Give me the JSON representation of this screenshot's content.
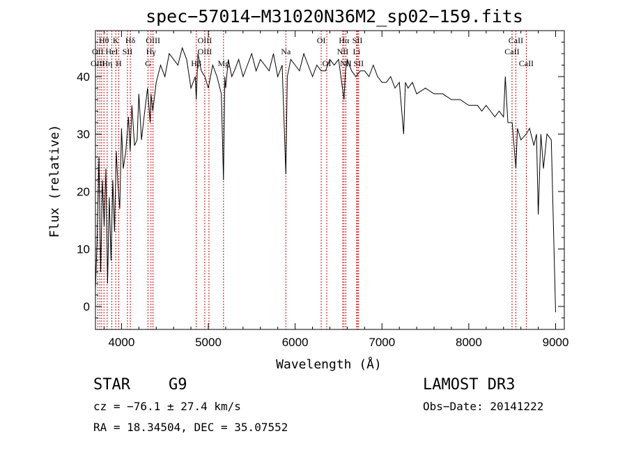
{
  "chart_data": {
    "type": "line",
    "title": "spec−57014−M31020N36M2_sp02−159.fits",
    "xlabel": "Wavelength (Å)",
    "ylabel": "Flux (relative)",
    "xlim": [
      3700,
      9100
    ],
    "ylim": [
      -4,
      48
    ],
    "xticks": [
      4000,
      5000,
      6000,
      7000,
      8000,
      9000
    ],
    "yticks": [
      0,
      10,
      20,
      30,
      40
    ],
    "grid": false,
    "series": [
      {
        "name": "flux",
        "x": [
          3700,
          3720,
          3740,
          3760,
          3780,
          3800,
          3820,
          3840,
          3860,
          3880,
          3900,
          3920,
          3940,
          3960,
          3980,
          4000,
          4020,
          4050,
          4080,
          4100,
          4120,
          4150,
          4180,
          4200,
          4230,
          4260,
          4300,
          4330,
          4340,
          4360,
          4400,
          4450,
          4500,
          4550,
          4600,
          4650,
          4700,
          4750,
          4800,
          4850,
          4861,
          4880,
          4920,
          4960,
          5000,
          5050,
          5100,
          5150,
          5175,
          5190,
          5200,
          5230,
          5270,
          5300,
          5350,
          5400,
          5450,
          5500,
          5550,
          5600,
          5650,
          5700,
          5750,
          5800,
          5850,
          5893,
          5910,
          5950,
          6000,
          6050,
          6100,
          6150,
          6200,
          6250,
          6300,
          6350,
          6400,
          6450,
          6500,
          6563,
          6580,
          6600,
          6650,
          6700,
          6750,
          6800,
          6850,
          6900,
          6950,
          7000,
          7050,
          7100,
          7150,
          7200,
          7250,
          7270,
          7300,
          7350,
          7400,
          7500,
          7600,
          7700,
          7800,
          7900,
          8000,
          8100,
          8150,
          8200,
          8250,
          8300,
          8350,
          8400,
          8420,
          8450,
          8500,
          8542,
          8560,
          8600,
          8662,
          8700,
          8750,
          8780,
          8800,
          8830,
          8860,
          8900,
          8950,
          9000
        ],
        "y": [
          3,
          12,
          26,
          6,
          22,
          14,
          24,
          4,
          19,
          8,
          22,
          13,
          27,
          21,
          17,
          31,
          24,
          27,
          33,
          27,
          35,
          28,
          29,
          37,
          29,
          33,
          38,
          32,
          37,
          34,
          39,
          42,
          40,
          44,
          43,
          42,
          45,
          43,
          38,
          40,
          36,
          44,
          41,
          40,
          38,
          42,
          40,
          37,
          22,
          40,
          38,
          43,
          40,
          41,
          43,
          40,
          42,
          44,
          41,
          43,
          42,
          41,
          44,
          40,
          42,
          23,
          40,
          43,
          42,
          41,
          44,
          42,
          40,
          42,
          41,
          41,
          43,
          42,
          43,
          36,
          41,
          43,
          41,
          40,
          41,
          41,
          40,
          42,
          40,
          39,
          39,
          40,
          38,
          39,
          30,
          39,
          38,
          39,
          37,
          38,
          37,
          37,
          36,
          36,
          35,
          35,
          34,
          35,
          34,
          33,
          34,
          33,
          40,
          32,
          32,
          24,
          31,
          29,
          30,
          31,
          28,
          30,
          16,
          30,
          24,
          30,
          29,
          -1
        ]
      }
    ],
    "annotations": [
      {
        "label": "Hθ",
        "x": 3798,
        "row": 0
      },
      {
        "label": "K",
        "x": 3934,
        "row": 0
      },
      {
        "label": "Hδ",
        "x": 4102,
        "row": 0
      },
      {
        "label": "OIII",
        "x": 4363,
        "row": 0
      },
      {
        "label": "OIII",
        "x": 4959,
        "row": 0
      },
      {
        "label": "OI",
        "x": 6300,
        "row": 0
      },
      {
        "label": "Hα",
        "x": 6563,
        "row": 0
      },
      {
        "label": "SII",
        "x": 6717,
        "row": 0
      },
      {
        "label": "CaII",
        "x": 8542,
        "row": 0
      },
      {
        "label": "OII",
        "x": 3727,
        "row": 1
      },
      {
        "label": "HeI",
        "x": 3889,
        "row": 1
      },
      {
        "label": "SII",
        "x": 4069,
        "row": 1
      },
      {
        "label": "Hγ",
        "x": 4340,
        "row": 1
      },
      {
        "label": "OIII",
        "x": 4959,
        "row": 1
      },
      {
        "label": "Na",
        "x": 5893,
        "row": 1
      },
      {
        "label": "NII",
        "x": 6548,
        "row": 1
      },
      {
        "label": "Li",
        "x": 6708,
        "row": 1
      },
      {
        "label": "CaII",
        "x": 8498,
        "row": 1
      },
      {
        "label": "OIII",
        "x": 3727,
        "row": 2
      },
      {
        "label": "Hη",
        "x": 3835,
        "row": 2
      },
      {
        "label": "H",
        "x": 3968,
        "row": 2
      },
      {
        "label": "G",
        "x": 4305,
        "row": 2
      },
      {
        "label": "Hβ",
        "x": 4861,
        "row": 2
      },
      {
        "label": "Mg",
        "x": 5175,
        "row": 2
      },
      {
        "label": "OI",
        "x": 6364,
        "row": 2
      },
      {
        "label": "NII",
        "x": 6584,
        "row": 2
      },
      {
        "label": "SII",
        "x": 6731,
        "row": 2
      },
      {
        "label": "CaII",
        "x": 8662,
        "row": 2
      }
    ],
    "line_markers": [
      3727,
      3750,
      3771,
      3798,
      3835,
      3889,
      3934,
      3968,
      4069,
      4102,
      4305,
      4340,
      4363,
      4861,
      4959,
      5007,
      5175,
      5893,
      6300,
      6364,
      6548,
      6563,
      6584,
      6708,
      6717,
      6731,
      8498,
      8542,
      8662
    ]
  },
  "info": {
    "object_class": "STAR",
    "subclass": "G9",
    "survey": "LAMOST DR3",
    "redshift_line": "cz = −76.1 ± 27.4 km/s",
    "obs_date": "Obs−Date: 20141222",
    "coords": "RA =  18.34504, DEC =  35.07552"
  },
  "colors": {
    "spectrum": "#000000",
    "markers": "#cc0000",
    "axes": "#000000"
  }
}
